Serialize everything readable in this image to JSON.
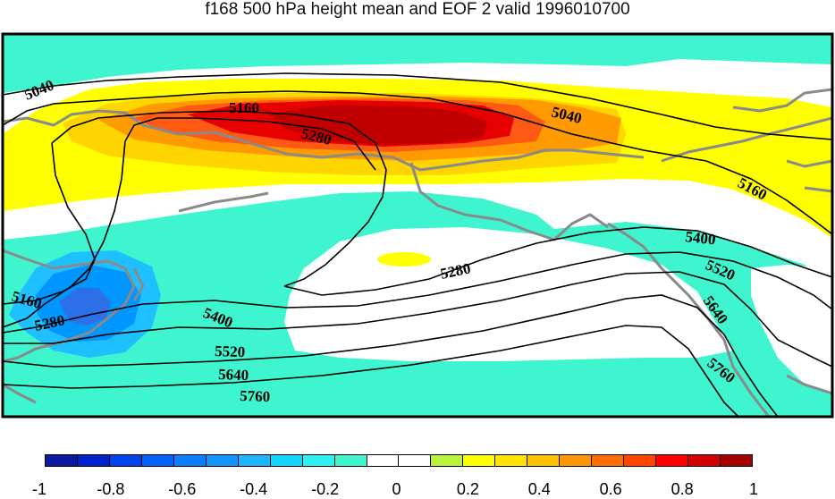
{
  "title": "f168 500 hPa height mean and EOF 2 valid 1996010700",
  "map": {
    "shading_colors": {
      "cyan": "#3ff5cf",
      "yellow": "#ffff00",
      "gold": "#ffd500",
      "orange": "#ff9a00",
      "redorange": "#ff5a14",
      "red": "#e60000",
      "darkred": "#c00000",
      "lightblue": "#1ec0ff",
      "blue": "#0096ff",
      "deepblue": "#2d6fe6"
    },
    "contour_labels": [
      "5040",
      "5160",
      "5280",
      "5040",
      "5160",
      "5400",
      "5520",
      "5640",
      "5760",
      "5280",
      "5160",
      "5280",
      "5400",
      "5520",
      "5640",
      "5760"
    ]
  },
  "colorbar": {
    "colors": [
      "#0a1aa0",
      "#0022cc",
      "#0044ee",
      "#0062ff",
      "#0a7eff",
      "#1496ff",
      "#1eb4ff",
      "#12d6ff",
      "#2ef0f0",
      "#3ff5cf",
      "#ffffff",
      "#ffffff",
      "#b8f23a",
      "#ffff00",
      "#ffe400",
      "#ffc000",
      "#ff9600",
      "#ff6e00",
      "#ff4600",
      "#ff0000",
      "#d40000",
      "#a50000"
    ],
    "tick_labels": [
      "-1",
      "-0.8",
      "-0.6",
      "-0.4",
      "-0.2",
      "0",
      "0.2",
      "0.4",
      "0.6",
      "0.8",
      "1"
    ]
  }
}
